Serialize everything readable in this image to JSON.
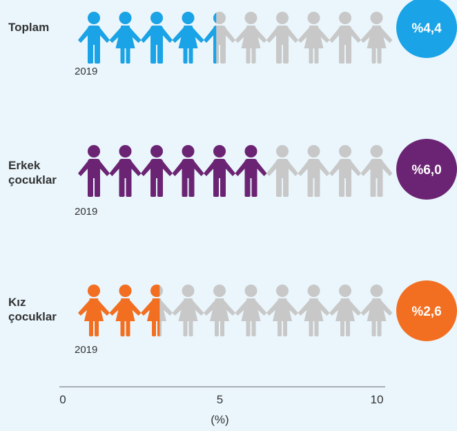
{
  "chart_data": {
    "type": "pictogram",
    "categories": [
      "Toplam",
      "Erkek çocuklar",
      "Kız çocuklar"
    ],
    "years": [
      "2019",
      "2019",
      "2019"
    ],
    "values": [
      4.4,
      6.0,
      2.6
    ],
    "value_labels": [
      "%4,4",
      "%6,0",
      "%2,6"
    ],
    "colors": [
      "#1aa3e6",
      "#6b2473",
      "#f26f21"
    ],
    "icons": [
      "mixed",
      "boy",
      "girl"
    ],
    "xlim": [
      0,
      10
    ],
    "xticks": [
      0,
      5,
      10
    ],
    "xlabel": "(%)"
  }
}
